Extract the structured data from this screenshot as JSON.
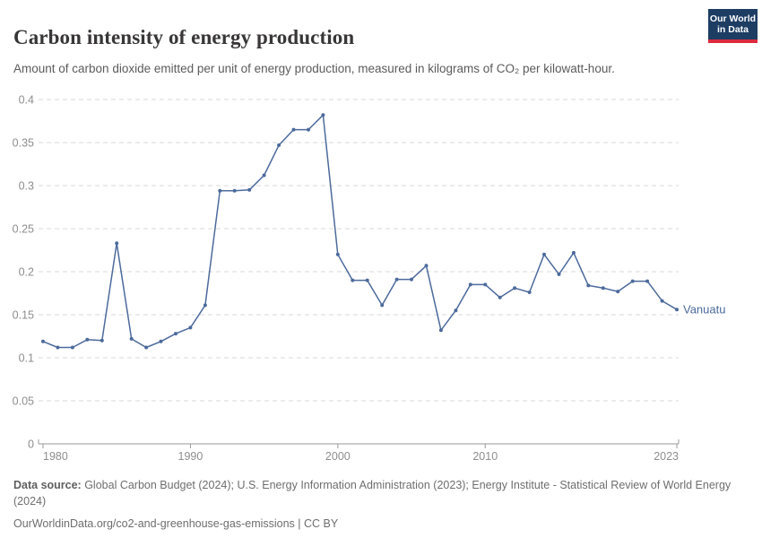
{
  "header": {
    "title": "Carbon intensity of energy production",
    "subtitle": "Amount of carbon dioxide emitted per unit of energy production, measured in kilograms of CO₂ per kilowatt-hour.",
    "logo": {
      "line1": "Our World",
      "line2": "in Data",
      "bg_color": "#1d3d63",
      "accent_color": "#dc2a3e"
    }
  },
  "chart_data": {
    "type": "line",
    "title": "Carbon intensity of energy production",
    "xlabel": "",
    "ylabel": "kilograms of CO₂ per kilowatt-hour",
    "xlim": [
      1980,
      2023
    ],
    "ylim": [
      0,
      0.4
    ],
    "grid": "horizontal-dashed",
    "legend_position": "end-of-line-label",
    "yticks": [
      {
        "value": 0,
        "label": "0"
      },
      {
        "value": 0.05,
        "label": "0.05"
      },
      {
        "value": 0.1,
        "label": "0.1"
      },
      {
        "value": 0.15,
        "label": "0.15"
      },
      {
        "value": 0.2,
        "label": "0.2"
      },
      {
        "value": 0.25,
        "label": "0.25"
      },
      {
        "value": 0.3,
        "label": "0.3"
      },
      {
        "value": 0.35,
        "label": "0.35"
      },
      {
        "value": 0.4,
        "label": "0.4"
      }
    ],
    "xticks": [
      {
        "value": 1980,
        "label": "1980"
      },
      {
        "value": 1990,
        "label": "1990"
      },
      {
        "value": 2000,
        "label": "2000"
      },
      {
        "value": 2010,
        "label": "2010"
      },
      {
        "value": 2023,
        "label": "2023"
      }
    ],
    "series": [
      {
        "name": "Vanuatu",
        "color": "#4c6a9c",
        "x": [
          1980,
          1981,
          1982,
          1983,
          1984,
          1985,
          1986,
          1987,
          1988,
          1989,
          1990,
          1991,
          1992,
          1993,
          1994,
          1995,
          1996,
          1997,
          1998,
          1999,
          2000,
          2001,
          2002,
          2003,
          2004,
          2005,
          2006,
          2007,
          2008,
          2009,
          2010,
          2011,
          2012,
          2013,
          2014,
          2015,
          2016,
          2017,
          2018,
          2019,
          2020,
          2021,
          2022,
          2023
        ],
        "values": [
          0.119,
          0.112,
          0.112,
          0.121,
          0.12,
          0.233,
          0.122,
          0.112,
          0.119,
          0.128,
          0.135,
          0.161,
          0.294,
          0.294,
          0.295,
          0.312,
          0.347,
          0.365,
          0.365,
          0.382,
          0.22,
          0.19,
          0.19,
          0.161,
          0.191,
          0.191,
          0.207,
          0.132,
          0.155,
          0.185,
          0.185,
          0.17,
          0.181,
          0.176,
          0.22,
          0.197,
          0.222,
          0.184,
          0.181,
          0.177,
          0.189,
          0.189,
          0.166,
          0.156
        ]
      }
    ],
    "colors": {
      "line": "#4c6a9c",
      "grid": "#dadada",
      "axis": "#999999",
      "tick_label": "#8e8e8e"
    }
  },
  "footer": {
    "source_label": "Data source:",
    "source_text": " Global Carbon Budget (2024); U.S. Energy Information Administration (2023); Energy Institute - Statistical Review of World Energy (2024)",
    "link_text": "OurWorldinData.org/co2-and-greenhouse-gas-emissions | CC BY"
  }
}
